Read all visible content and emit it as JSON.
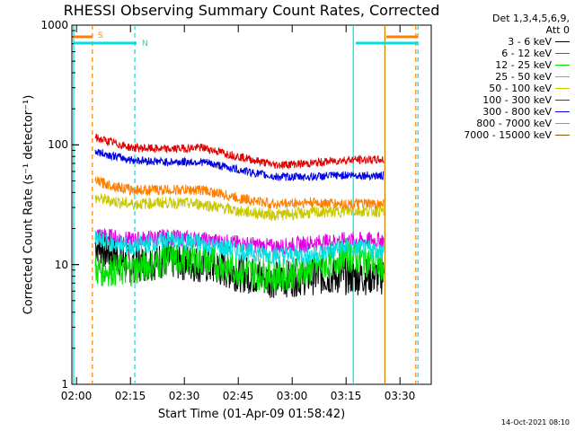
{
  "chart_data": {
    "type": "line",
    "title": "RHESSI Observing Summary Count Rates, Corrected",
    "xlabel": "Start Time (01-Apr-09 01:58:42)",
    "ylabel": "Corrected Count Rate (s⁻¹ detector⁻¹)",
    "yscale": "log",
    "ylim": [
      1,
      1000
    ],
    "xlim_minutes": [
      118.7,
      218.7
    ],
    "x_tick_labels": [
      "02:00",
      "02:15",
      "02:30",
      "02:45",
      "03:00",
      "03:15",
      "03:30"
    ],
    "x_tick_minutes": [
      120,
      135,
      150,
      165,
      180,
      195,
      210
    ],
    "y_tick_labels": [
      "1",
      "10",
      "100",
      "1000"
    ],
    "y_tick_values": [
      1,
      10,
      100,
      1000
    ],
    "legend_header": [
      "Det 1,3,4,5,6,9,",
      "Att 0"
    ],
    "legend_position": "top-right",
    "series": [
      {
        "name": "3 - 6 keV",
        "color": "#000000",
        "x": [
          125,
          135,
          145,
          155,
          165,
          175,
          185,
          195,
          205
        ],
        "y": [
          15,
          10,
          11,
          10,
          8.5,
          7.5,
          8,
          8,
          8
        ]
      },
      {
        "name": "6 - 12 keV",
        "color": "#e000e0",
        "x": [
          125,
          135,
          145,
          155,
          165,
          175,
          185,
          195,
          205
        ],
        "y": [
          18,
          16,
          17,
          16,
          15,
          14,
          15,
          16,
          16
        ]
      },
      {
        "name": "12 - 25 keV",
        "color": "#00e000",
        "x": [
          125,
          135,
          145,
          155,
          165,
          175,
          185,
          195,
          205
        ],
        "y": [
          9,
          9,
          11,
          11,
          9,
          8,
          9,
          12,
          10
        ]
      },
      {
        "name": "25 - 50 keV",
        "color": "#00e0e0",
        "x": [
          125,
          135,
          145,
          155,
          165,
          175,
          185,
          195,
          205
        ],
        "y": [
          16,
          14,
          16,
          15,
          13,
          12,
          12,
          14,
          13
        ]
      },
      {
        "name": "50 - 100 keV",
        "color": "#c8c800",
        "x": [
          125,
          135,
          145,
          155,
          165,
          175,
          185,
          195,
          205
        ],
        "y": [
          36,
          32,
          33,
          32,
          28,
          26,
          27,
          28,
          28
        ]
      },
      {
        "name": "100 - 300 keV",
        "color": "#e00000",
        "x": [
          125,
          135,
          145,
          155,
          165,
          175,
          185,
          195,
          205
        ],
        "y": [
          115,
          95,
          92,
          95,
          80,
          68,
          70,
          75,
          75
        ]
      },
      {
        "name": "300 - 800 keV",
        "color": "#0000e0",
        "x": [
          125,
          135,
          145,
          155,
          165,
          175,
          185,
          195,
          205
        ],
        "y": [
          88,
          75,
          72,
          72,
          62,
          54,
          54,
          56,
          55
        ]
      },
      {
        "name": "800 - 7000 keV",
        "color": "#ff8000",
        "x": [
          125,
          135,
          145,
          155,
          165,
          175,
          185,
          195,
          205
        ],
        "y": [
          50,
          42,
          42,
          42,
          36,
          32,
          33,
          32,
          32
        ]
      },
      {
        "name": "7000 - 15000 keV",
        "color": "#8b5a00",
        "x": [],
        "y": []
      }
    ],
    "annotations": [
      {
        "label": "S",
        "color": "#ff8000",
        "level": 800
      },
      {
        "label": "N",
        "color": "#00e0e0",
        "level": 680
      }
    ]
  },
  "timestamp": "14-Oct-2021 08:10"
}
